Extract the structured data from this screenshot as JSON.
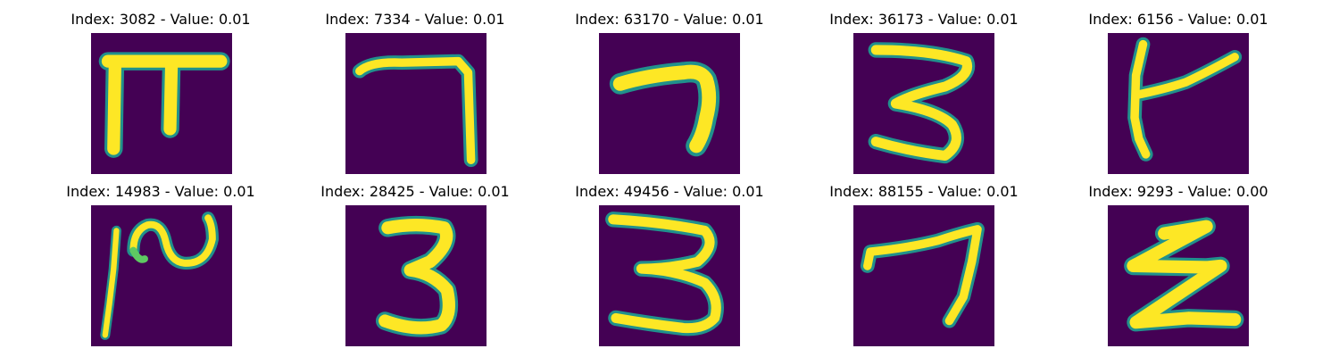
{
  "colors": {
    "background": "#440154",
    "stroke_core": "#fde725",
    "stroke_edge": "#21918c",
    "stroke_mid": "#5ec962"
  },
  "panels": [
    {
      "title": "Index: 3082 - Value: 0.01",
      "depicts": "pi-icon"
    },
    {
      "title": "Index: 7334 - Value: 0.01",
      "depicts": "seven-icon"
    },
    {
      "title": "Index: 63170 - Value: 0.01",
      "depicts": "seven-icon"
    },
    {
      "title": "Index: 36173 - Value: 0.01",
      "depicts": "three-icon"
    },
    {
      "title": "Index: 6156 - Value: 0.01",
      "depicts": "k-icon"
    },
    {
      "title": "Index: 14983 - Value: 0.01",
      "depicts": "scribble-icon"
    },
    {
      "title": "Index: 28425 - Value: 0.01",
      "depicts": "three-icon"
    },
    {
      "title": "Index: 49456 - Value: 0.01",
      "depicts": "three-icon"
    },
    {
      "title": "Index: 88155 - Value: 0.01",
      "depicts": "seven-icon"
    },
    {
      "title": "Index: 9293 - Value: 0.00",
      "depicts": "z-icon"
    }
  ]
}
